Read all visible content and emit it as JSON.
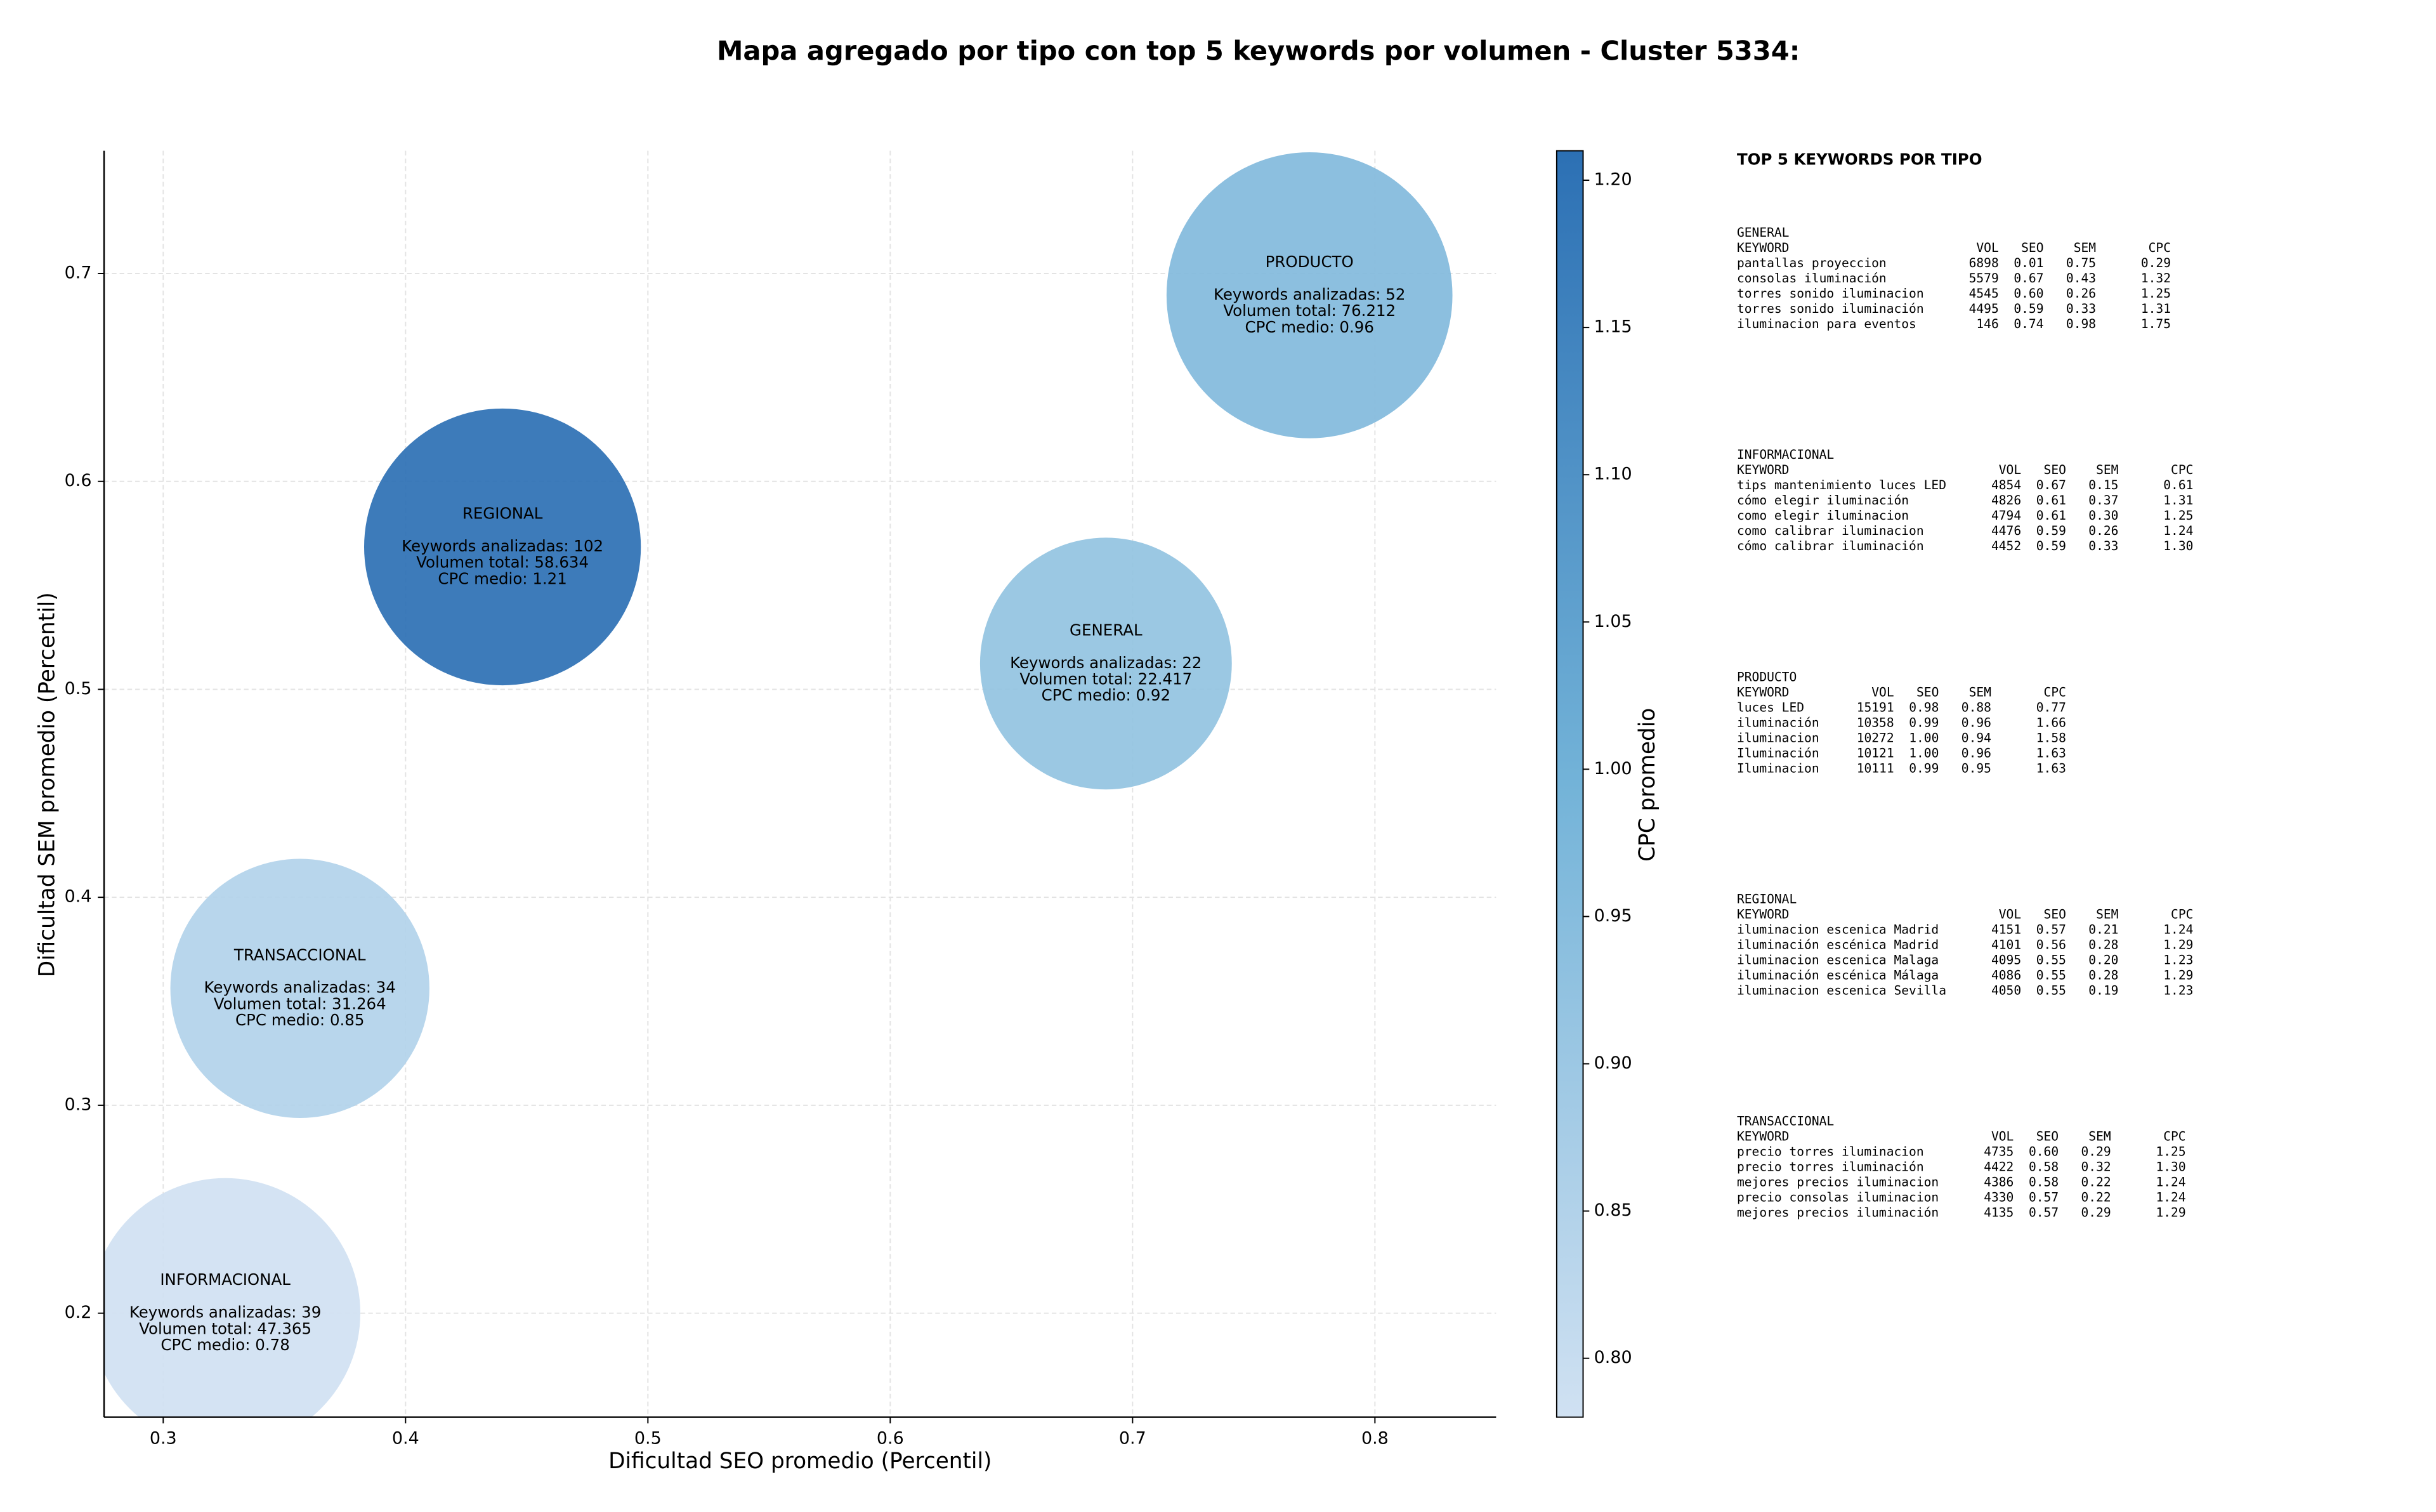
{
  "chart_data": {
    "type": "bubble",
    "title": "Mapa agregado por tipo con top 5 keywords por volumen - Cluster 5334:",
    "xlabel": "Dificultad SEO promedio (Percentil)",
    "ylabel": "Dificultad SEM promedio (Percentil)",
    "colorbar_label": "CPC promedio",
    "xlim": [
      0.2756,
      0.85
    ],
    "ylim": [
      0.15,
      0.759
    ],
    "xticks": [
      0.3,
      0.4,
      0.5,
      0.6,
      0.7,
      0.8
    ],
    "yticks": [
      0.2,
      0.3,
      0.4,
      0.5,
      0.6,
      0.7
    ],
    "clim": [
      0.78,
      1.21
    ],
    "cticks": [
      {
        "value": 0.8,
        "label": "0.80"
      },
      0.85,
      {
        "value": 0.9,
        "label": "0.90"
      },
      0.95,
      {
        "value": 1.0,
        "label": "1.00"
      },
      1.05,
      {
        "value": 1.1,
        "label": "1.10"
      },
      1.15,
      {
        "value": 1.2,
        "label": "1.20"
      }
    ],
    "colormap": [
      "#d0e1f2",
      "#73b3d8",
      "#2c70b4"
    ],
    "grid": true,
    "bubbles": [
      {
        "name": "PRODUCTO",
        "x": 0.773,
        "y": 0.6895,
        "size": 76212,
        "cpc": 0.96,
        "lines": [
          "Keywords analizadas: 52",
          "Volumen total: 76.212",
          "CPC medio: 0.96"
        ]
      },
      {
        "name": "REGIONAL",
        "x": 0.44,
        "y": 0.5685,
        "size": 58634,
        "cpc": 1.21,
        "lines": [
          "Keywords analizadas: 102",
          "Volumen total: 58.634",
          "CPC medio: 1.21"
        ]
      },
      {
        "name": "GENERAL",
        "x": 0.689,
        "y": 0.5124,
        "size": 22417,
        "cpc": 0.92,
        "lines": [
          "Keywords analizadas: 22",
          "Volumen total: 22.417",
          "CPC medio: 0.92"
        ]
      },
      {
        "name": "TRANSACCIONAL",
        "x": 0.3564,
        "y": 0.3562,
        "size": 31264,
        "cpc": 0.85,
        "lines": [
          "Keywords analizadas: 34",
          "Volumen total: 31.264",
          "CPC medio: 0.85"
        ]
      },
      {
        "name": "INFORMACIONAL",
        "x": 0.3256,
        "y": 0.2,
        "size": 47365,
        "cpc": 0.78,
        "lines": [
          "Keywords analizadas: 39",
          "Volumen total: 47.365",
          "CPC medio: 0.78"
        ]
      }
    ]
  },
  "keyword_panel": {
    "title": "TOP 5 KEYWORDS POR TIPO",
    "groups": [
      {
        "name": "GENERAL",
        "header": [
          "KEYWORD",
          "VOL",
          "SEO",
          "SEM",
          "CPC"
        ],
        "rows": [
          [
            "pantallas proyeccion",
            "6898",
            "0.01",
            "0.75",
            "0.29"
          ],
          [
            "consolas iluminación",
            "5579",
            "0.67",
            "0.43",
            "1.32"
          ],
          [
            "torres sonido iluminacion",
            "4545",
            "0.60",
            "0.26",
            "1.25"
          ],
          [
            "torres sonido iluminación",
            "4495",
            "0.59",
            "0.33",
            "1.31"
          ],
          [
            "iluminacion para eventos",
            "146",
            "0.74",
            "0.98",
            "1.75"
          ]
        ]
      },
      {
        "name": "INFORMACIONAL",
        "header": [
          "KEYWORD",
          "VOL",
          "SEO",
          "SEM",
          "CPC"
        ],
        "rows": [
          [
            "tips mantenimiento luces LED",
            "4854",
            "0.67",
            "0.15",
            "0.61"
          ],
          [
            "cómo elegir iluminación",
            "4826",
            "0.61",
            "0.37",
            "1.31"
          ],
          [
            "como elegir iluminacion",
            "4794",
            "0.61",
            "0.30",
            "1.25"
          ],
          [
            "como calibrar iluminacion",
            "4476",
            "0.59",
            "0.26",
            "1.24"
          ],
          [
            "cómo calibrar iluminación",
            "4452",
            "0.59",
            "0.33",
            "1.30"
          ]
        ]
      },
      {
        "name": "PRODUCTO",
        "header": [
          "KEYWORD",
          "VOL",
          "SEO",
          "SEM",
          "CPC"
        ],
        "rows": [
          [
            "luces LED",
            "15191",
            "0.98",
            "0.88",
            "0.77"
          ],
          [
            "iluminación",
            "10358",
            "0.99",
            "0.96",
            "1.66"
          ],
          [
            "iluminacion",
            "10272",
            "1.00",
            "0.94",
            "1.58"
          ],
          [
            "Iluminación",
            "10121",
            "1.00",
            "0.96",
            "1.63"
          ],
          [
            "Iluminacion",
            "10111",
            "0.99",
            "0.95",
            "1.63"
          ]
        ]
      },
      {
        "name": "REGIONAL",
        "header": [
          "KEYWORD",
          "VOL",
          "SEO",
          "SEM",
          "CPC"
        ],
        "rows": [
          [
            "iluminacion escenica Madrid",
            "4151",
            "0.57",
            "0.21",
            "1.24"
          ],
          [
            "iluminación escénica Madrid",
            "4101",
            "0.56",
            "0.28",
            "1.29"
          ],
          [
            "iluminacion escenica Malaga",
            "4095",
            "0.55",
            "0.20",
            "1.23"
          ],
          [
            "iluminación escénica Málaga",
            "4086",
            "0.55",
            "0.28",
            "1.29"
          ],
          [
            "iluminacion escenica Sevilla",
            "4050",
            "0.55",
            "0.19",
            "1.23"
          ]
        ]
      },
      {
        "name": "TRANSACCIONAL",
        "header": [
          "KEYWORD",
          "VOL",
          "SEO",
          "SEM",
          "CPC"
        ],
        "rows": [
          [
            "precio torres iluminacion",
            "4735",
            "0.60",
            "0.29",
            "1.25"
          ],
          [
            "precio torres iluminación",
            "4422",
            "0.58",
            "0.32",
            "1.30"
          ],
          [
            "mejores precios iluminacion",
            "4386",
            "0.58",
            "0.22",
            "1.24"
          ],
          [
            "precio consolas iluminacion",
            "4330",
            "0.57",
            "0.22",
            "1.24"
          ],
          [
            "mejores precios iluminación",
            "4135",
            "0.57",
            "0.29",
            "1.29"
          ]
        ]
      }
    ]
  }
}
